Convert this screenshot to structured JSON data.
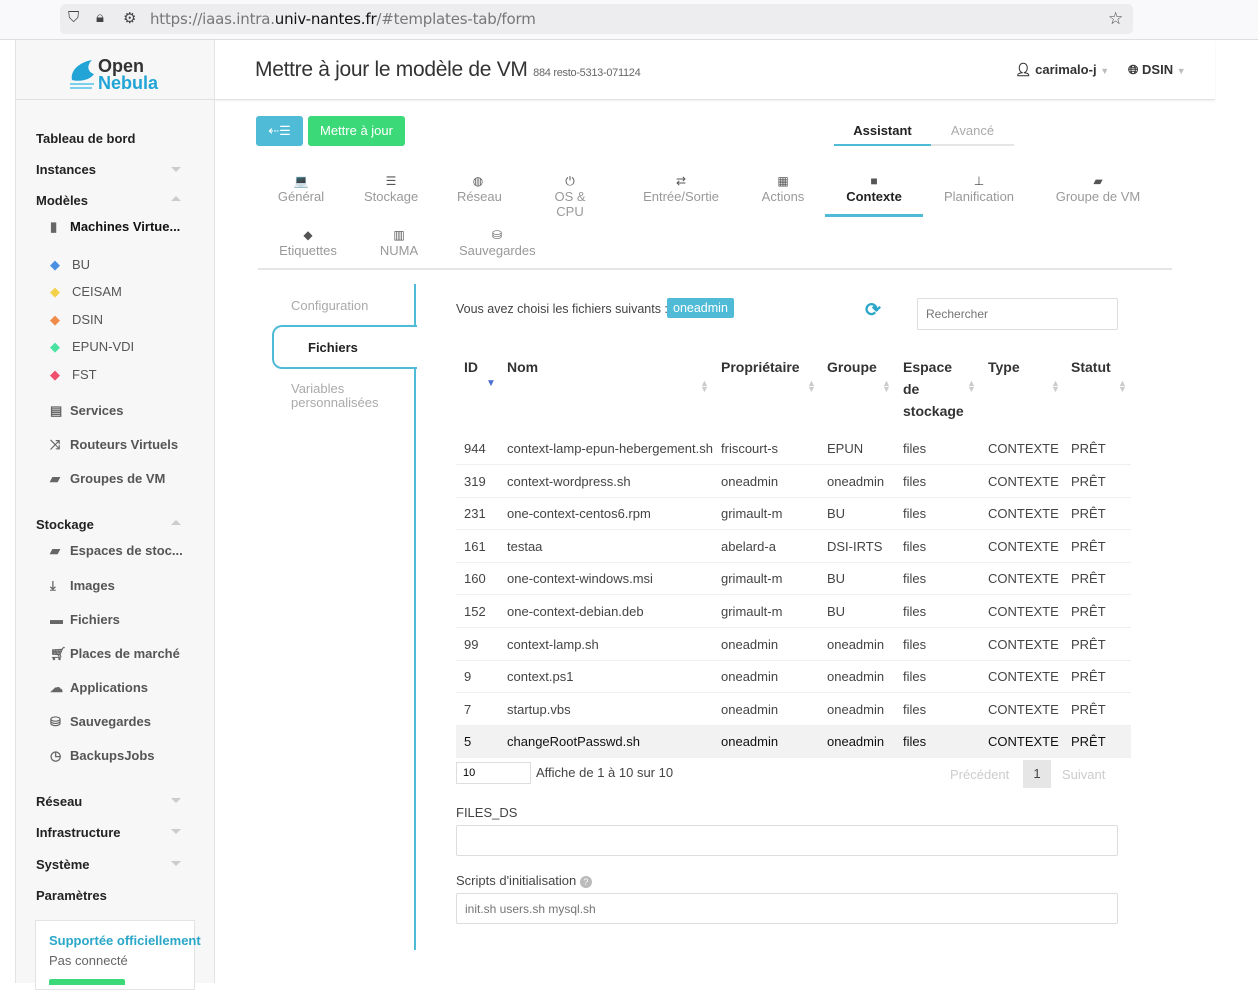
{
  "browser": {
    "url_prefix": "https://iaas.intra.",
    "url_domain": "univ-nantes.fr",
    "url_suffix": "/#templates-tab/form"
  },
  "logo": {
    "line1": "Open",
    "line2": "Nebula"
  },
  "sidebar": {
    "dashboard": "Tableau de bord",
    "instances": "Instances",
    "templates": "Modèles",
    "vm_templates": "Machines Virtue...",
    "labels": [
      {
        "label": "BU",
        "color": "#4a90e2"
      },
      {
        "label": "CEISAM",
        "color": "#f5d04a"
      },
      {
        "label": "DSIN",
        "color": "#f08c4a"
      },
      {
        "label": "EPUN-VDI",
        "color": "#4ae2a0"
      },
      {
        "label": "FST",
        "color": "#f0506e"
      }
    ],
    "services": "Services",
    "vrouters": "Routeurs Virtuels",
    "vmgroups": "Groupes de VM",
    "storage": "Stockage",
    "datastores": "Espaces de stoc...",
    "images": "Images",
    "files": "Fichiers",
    "marketplaces": "Places de marché",
    "apps": "Applications",
    "backups": "Sauvegardes",
    "backupjobs": "BackupsJobs",
    "network": "Réseau",
    "infrastructure": "Infrastructure",
    "system": "Système",
    "settings": "Paramètres",
    "support_title": "Supportée officiellement",
    "support_status": "Pas connecté"
  },
  "header": {
    "title": "Mettre à jour le modèle de VM",
    "subtitle": "884 resto-5313-071124",
    "user": "carimalo-j",
    "zone": "DSIN"
  },
  "toolbar": {
    "update_label": "Mettre à jour"
  },
  "mode_tabs": [
    {
      "label": "Assistant",
      "active": true
    },
    {
      "label": "Avancé",
      "active": false
    }
  ],
  "tabs": [
    {
      "label": "Général",
      "icon": "laptop-icon",
      "glyph": "💻"
    },
    {
      "label": "Stockage",
      "icon": "server-icon",
      "glyph": "☰"
    },
    {
      "label": "Réseau",
      "icon": "globe-icon",
      "glyph": "◍"
    },
    {
      "label": "OS & CPU",
      "icon": "power-icon",
      "glyph": "⏻"
    },
    {
      "label": "Entrée/Sortie",
      "icon": "exchange-icon",
      "glyph": "⇄"
    },
    {
      "label": "Actions",
      "icon": "calendar-icon",
      "glyph": "▦"
    },
    {
      "label": "Contexte",
      "icon": "folder-icon",
      "glyph": "■"
    },
    {
      "label": "Planification",
      "icon": "sitemap-icon",
      "glyph": "⊥"
    },
    {
      "label": "Groupe de VM",
      "icon": "folder-open-icon",
      "glyph": "▰"
    },
    {
      "label": "Etiquettes",
      "icon": "tag-icon",
      "glyph": "◆"
    },
    {
      "label": "NUMA",
      "icon": "chip-icon",
      "glyph": "▥"
    },
    {
      "label": "Sauvegardes",
      "icon": "database-icon",
      "glyph": "⛁"
    }
  ],
  "subtabs": [
    {
      "label": "Configuration"
    },
    {
      "label": "Fichiers"
    },
    {
      "label": "Variables personnalisées"
    }
  ],
  "files": {
    "selected_label": "Vous avez choisi les fichiers suivants :",
    "selected_badge": "oneadmin",
    "search_placeholder": "Rechercher",
    "columns": [
      "ID",
      "Nom",
      "Propriétaire",
      "Groupe",
      "Espace de stockage",
      "Type",
      "Statut"
    ],
    "rows": [
      [
        "944",
        "context-lamp-epun-hebergement.sh",
        "friscourt-s",
        "EPUN",
        "files",
        "CONTEXTE",
        "PRÊT"
      ],
      [
        "319",
        "context-wordpress.sh",
        "oneadmin",
        "oneadmin",
        "files",
        "CONTEXTE",
        "PRÊT"
      ],
      [
        "231",
        "one-context-centos6.rpm",
        "grimault-m",
        "BU",
        "files",
        "CONTEXTE",
        "PRÊT"
      ],
      [
        "161",
        "testaa",
        "abelard-a",
        "DSI-IRTS",
        "files",
        "CONTEXTE",
        "PRÊT"
      ],
      [
        "160",
        "one-context-windows.msi",
        "grimault-m",
        "BU",
        "files",
        "CONTEXTE",
        "PRÊT"
      ],
      [
        "152",
        "one-context-debian.deb",
        "grimault-m",
        "BU",
        "files",
        "CONTEXTE",
        "PRÊT"
      ],
      [
        "99",
        "context-lamp.sh",
        "oneadmin",
        "oneadmin",
        "files",
        "CONTEXTE",
        "PRÊT"
      ],
      [
        "9",
        "context.ps1",
        "oneadmin",
        "oneadmin",
        "files",
        "CONTEXTE",
        "PRÊT"
      ],
      [
        "7",
        "startup.vbs",
        "oneadmin",
        "oneadmin",
        "files",
        "CONTEXTE",
        "PRÊT"
      ],
      [
        "5",
        "changeRootPasswd.sh",
        "oneadmin",
        "oneadmin",
        "files",
        "CONTEXTE",
        "PRÊT"
      ]
    ],
    "selected_row": 9,
    "page_size": "10",
    "info": "Affiche de 1 à 10 sur 10",
    "prev": "Précédent",
    "page": "1",
    "next": "Suivant",
    "files_ds_label": "FILES_DS",
    "files_ds_value": "",
    "init_label": "Scripts d'initialisation",
    "init_placeholder": "init.sh users.sh mysql.sh"
  },
  "colors": {
    "accent": "#4fbbd6",
    "success": "#3cd978"
  }
}
